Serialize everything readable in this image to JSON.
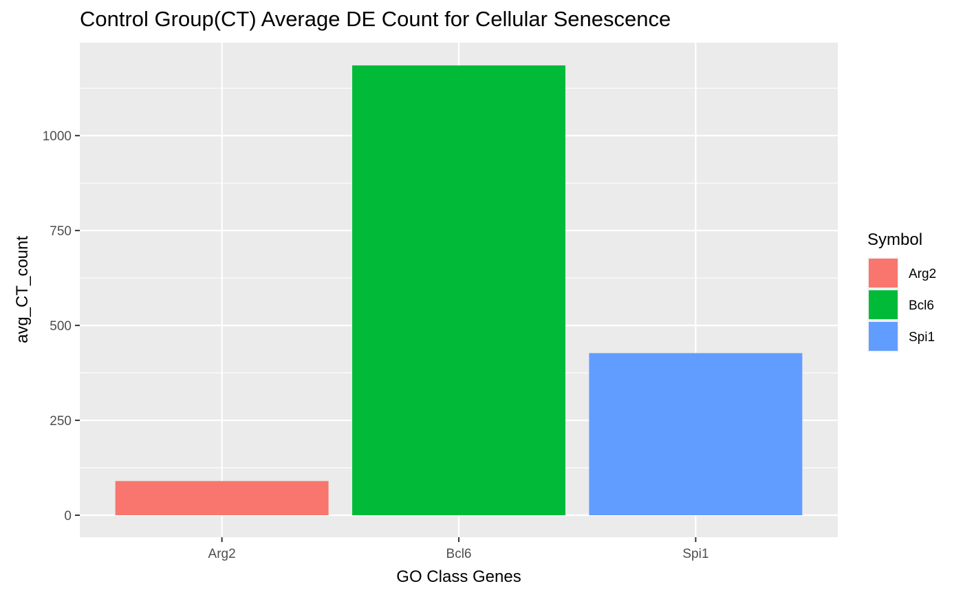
{
  "chart_data": {
    "type": "bar",
    "title": "Control Group(CT) Average DE Count for Cellular Senescence",
    "xlabel": "GO Class Genes",
    "ylabel": "avg_CT_count",
    "categories": [
      "Arg2",
      "Bcl6",
      "Spi1"
    ],
    "values": [
      90,
      1185,
      427
    ],
    "colors": [
      "#F8766D",
      "#00BA38",
      "#619CFF"
    ],
    "ylim": [
      -58,
      1245
    ],
    "yticks": [
      0,
      250,
      500,
      750,
      1000
    ],
    "ytick_labels": [
      "0",
      "250",
      "500",
      "750",
      "1000"
    ],
    "grid": true,
    "panel_background": "#EBEBEB",
    "legend": {
      "title": "Symbol",
      "position": "right",
      "entries": [
        "Arg2",
        "Bcl6",
        "Spi1"
      ]
    }
  }
}
